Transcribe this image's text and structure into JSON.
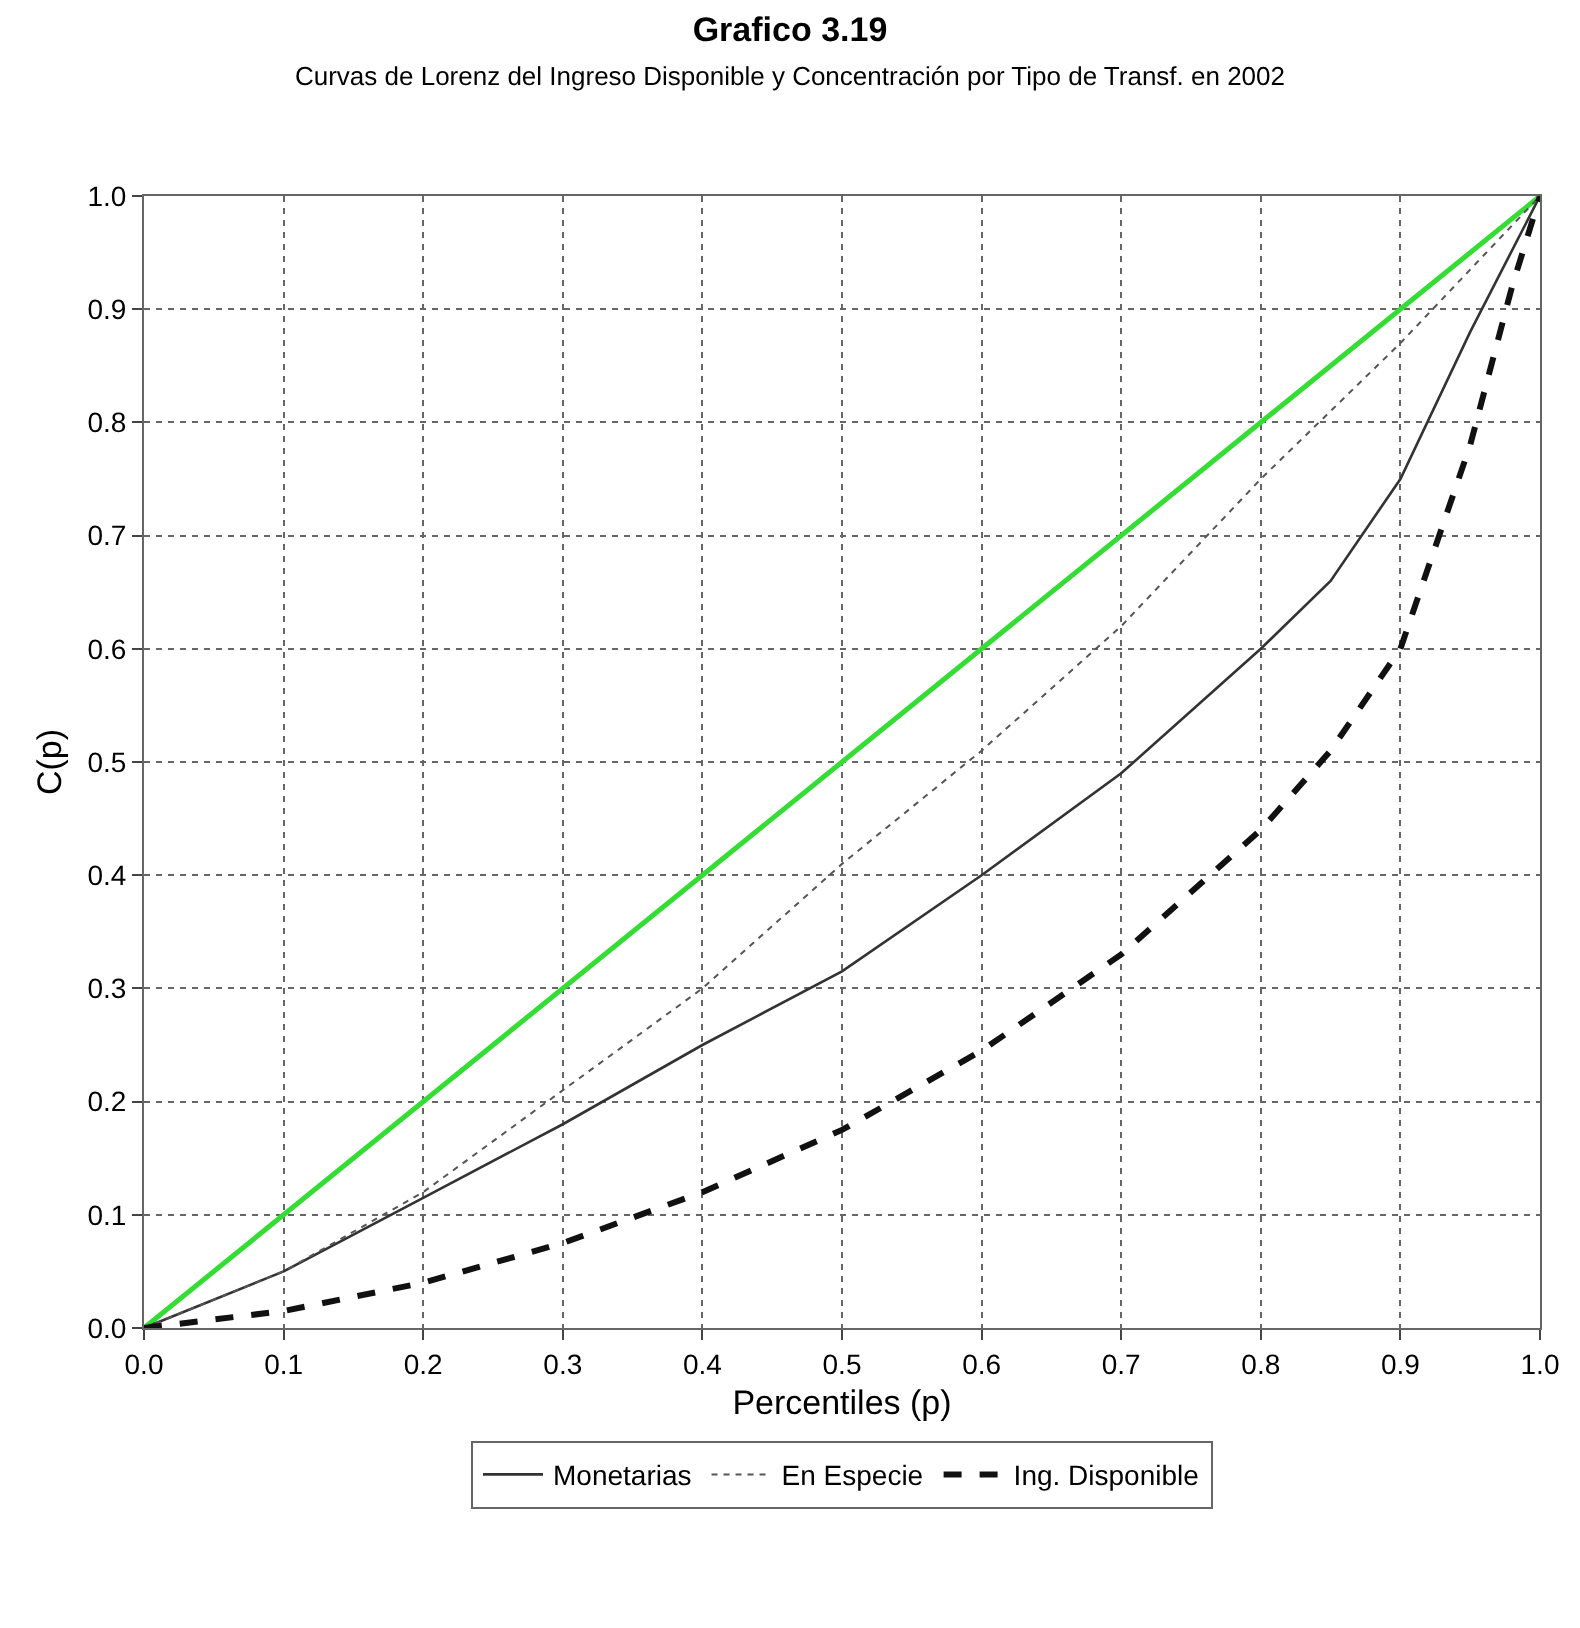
{
  "chart_data": {
    "type": "line",
    "title": "Grafico 3.19",
    "subtitle": "Curvas de Lorenz del Ingreso Disponible y Concentración por Tipo de Transf. en 2002",
    "xlabel": "Percentiles (p)",
    "ylabel": "C(p)",
    "xlim": [
      0,
      1
    ],
    "ylim": [
      0,
      1
    ],
    "xticks": [
      {
        "value": 0,
        "label": "0.0"
      },
      {
        "value": 0.1,
        "label": "0.1"
      },
      {
        "value": 0.2,
        "label": "0.2"
      },
      {
        "value": 0.3,
        "label": "0.3"
      },
      {
        "value": 0.4,
        "label": "0.4"
      },
      {
        "value": 0.5,
        "label": "0.5"
      },
      {
        "value": 0.6,
        "label": "0.6"
      },
      {
        "value": 0.7,
        "label": "0.7"
      },
      {
        "value": 0.8,
        "label": "0.8"
      },
      {
        "value": 0.9,
        "label": "0.9"
      },
      {
        "value": 1,
        "label": "1.0"
      }
    ],
    "yticks": [
      {
        "value": 0,
        "label": "0.0"
      },
      {
        "value": 0.1,
        "label": "0.1"
      },
      {
        "value": 0.2,
        "label": "0.2"
      },
      {
        "value": 0.3,
        "label": "0.3"
      },
      {
        "value": 0.4,
        "label": "0.4"
      },
      {
        "value": 0.5,
        "label": "0.5"
      },
      {
        "value": 0.6,
        "label": "0.6"
      },
      {
        "value": 0.7,
        "label": "0.7"
      },
      {
        "value": 0.8,
        "label": "0.8"
      },
      {
        "value": 0.9,
        "label": "0.9"
      },
      {
        "value": 1,
        "label": "1.0"
      }
    ],
    "grid": true,
    "legend": "bottom",
    "marker": "none",
    "series": [
      {
        "name": null,
        "color": "#33dd33",
        "line_style": "solid",
        "x": [
          0,
          1
        ],
        "values": [
          0,
          1
        ]
      },
      {
        "name": "Monetarias",
        "color": "#333333",
        "line_style": "solid",
        "x": [
          0,
          0.1,
          0.2,
          0.3,
          0.4,
          0.5,
          0.6,
          0.7,
          0.8,
          0.85,
          0.9,
          0.95,
          1
        ],
        "values": [
          0,
          0.05,
          0.115,
          0.18,
          0.25,
          0.315,
          0.4,
          0.49,
          0.6,
          0.66,
          0.75,
          0.88,
          1
        ]
      },
      {
        "name": "En Especie",
        "color": "#555555",
        "line_style": "dotted",
        "x": [
          0,
          0.1,
          0.2,
          0.3,
          0.4,
          0.5,
          0.6,
          0.7,
          0.8,
          0.9,
          1
        ],
        "values": [
          0,
          0.05,
          0.12,
          0.21,
          0.3,
          0.41,
          0.51,
          0.62,
          0.75,
          0.87,
          1
        ]
      },
      {
        "name": "Ing. Disponible",
        "color": "#111111",
        "line_style": "dashed",
        "x": [
          0,
          0.1,
          0.2,
          0.3,
          0.4,
          0.5,
          0.6,
          0.7,
          0.8,
          0.85,
          0.9,
          0.95,
          0.98,
          1
        ],
        "values": [
          0,
          0.015,
          0.04,
          0.075,
          0.12,
          0.175,
          0.245,
          0.33,
          0.44,
          0.51,
          0.6,
          0.78,
          0.92,
          1
        ]
      }
    ]
  }
}
